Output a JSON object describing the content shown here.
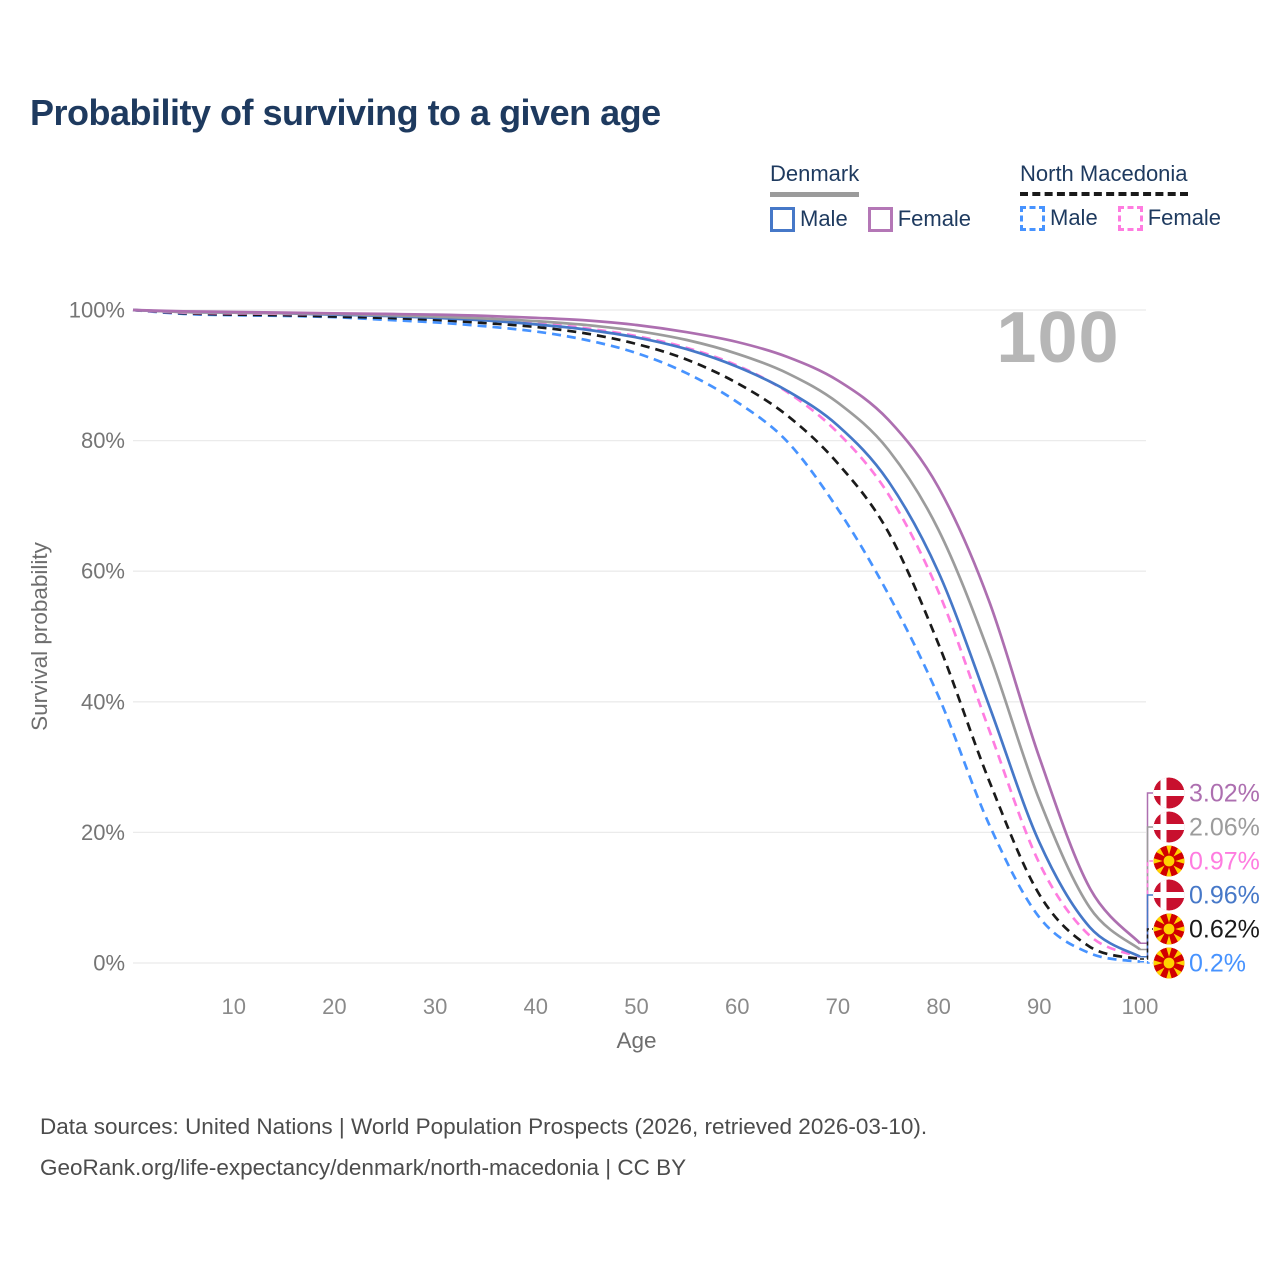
{
  "page": {
    "title": "Probability of surviving to a given age",
    "watermark_age_counter": "100"
  },
  "legend": {
    "groups": [
      {
        "label": "Denmark",
        "line_style": "solid",
        "underline_color": "#9b9b9b",
        "items": [
          {
            "label": "Male",
            "color": "#4678c8"
          },
          {
            "label": "Female",
            "color": "#b477b6"
          }
        ]
      },
      {
        "label": "North Macedonia",
        "line_style": "dashed",
        "underline_color": "#1a1a1a",
        "items": [
          {
            "label": "Male",
            "color": "#4793ff"
          },
          {
            "label": "Female",
            "color": "#ff7ce0"
          }
        ]
      }
    ]
  },
  "chart_data": {
    "type": "line",
    "title": "Probability of surviving to a given age",
    "xlabel": "Age",
    "ylabel": "Survival probability",
    "xlim": [
      0,
      100
    ],
    "ylim": [
      0,
      100
    ],
    "grid": "horizontal",
    "x_ticks": [
      10,
      20,
      30,
      40,
      50,
      60,
      70,
      80,
      90,
      100
    ],
    "y_ticks": [
      {
        "label": "0%",
        "value": 0
      },
      {
        "label": "20%",
        "value": 20
      },
      {
        "label": "40%",
        "value": 40
      },
      {
        "label": "60%",
        "value": 60
      },
      {
        "label": "80%",
        "value": 80
      },
      {
        "label": "100%",
        "value": 100
      }
    ],
    "ages": [
      0,
      5,
      10,
      15,
      20,
      25,
      30,
      35,
      40,
      45,
      50,
      55,
      60,
      65,
      70,
      75,
      80,
      85,
      90,
      95,
      100
    ],
    "series": [
      {
        "name": "Denmark Female",
        "country": "Denmark",
        "sex": "Female",
        "color": "#ad6fb0",
        "dash": "solid",
        "flag": "denmark",
        "end_label": "3.02%",
        "values": [
          100,
          99.8,
          99.7,
          99.6,
          99.5,
          99.4,
          99.3,
          99.1,
          98.8,
          98.4,
          97.7,
          96.6,
          95.1,
          92.8,
          89.2,
          83.2,
          72.8,
          55.5,
          31.5,
          11.5,
          3.02
        ]
      },
      {
        "name": "Denmark Both Sexes",
        "country": "Denmark",
        "sex": "Both",
        "color": "#9c9c9c",
        "dash": "solid",
        "flag": "denmark",
        "end_label": "2.06%",
        "values": [
          100,
          99.7,
          99.6,
          99.5,
          99.4,
          99.2,
          99.0,
          98.7,
          98.3,
          97.7,
          96.8,
          95.4,
          93.3,
          90.3,
          85.8,
          78.6,
          66.3,
          47.5,
          25.0,
          8.5,
          2.06
        ]
      },
      {
        "name": "North Macedonia Female",
        "country": "North Macedonia",
        "sex": "Female",
        "color": "#ff7ce0",
        "dash": "dashed",
        "flag": "north-macedonia",
        "end_label": "0.97%",
        "values": [
          100,
          99.6,
          99.5,
          99.4,
          99.3,
          99.1,
          98.9,
          98.5,
          98.0,
          97.2,
          96.0,
          94.2,
          91.5,
          87.4,
          81.2,
          71.8,
          56.8,
          35.8,
          15.3,
          4.2,
          0.97
        ]
      },
      {
        "name": "Denmark Male",
        "country": "Denmark",
        "sex": "Male",
        "color": "#4678c8",
        "dash": "solid",
        "flag": "denmark",
        "end_label": "0.96%",
        "values": [
          100,
          99.7,
          99.6,
          99.5,
          99.3,
          99.1,
          98.8,
          98.4,
          97.8,
          97.0,
          95.8,
          94.0,
          91.3,
          87.6,
          82.3,
          73.8,
          59.8,
          39.5,
          18.5,
          5.5,
          0.96
        ]
      },
      {
        "name": "North Macedonia Both Sexes",
        "country": "North Macedonia",
        "sex": "Both",
        "color": "#1a1a1a",
        "dash": "dashed",
        "flag": "north-macedonia",
        "end_label": "0.62%",
        "values": [
          100,
          99.5,
          99.3,
          99.2,
          99.0,
          98.8,
          98.5,
          98.0,
          97.4,
          96.4,
          94.8,
          92.4,
          88.8,
          83.8,
          76.5,
          66.0,
          48.8,
          28.0,
          10.5,
          2.5,
          0.62
        ]
      },
      {
        "name": "North Macedonia Male",
        "country": "North Macedonia",
        "sex": "Male",
        "color": "#4793ff",
        "dash": "dashed",
        "flag": "north-macedonia",
        "end_label": "0.2%",
        "values": [
          100,
          99.4,
          99.2,
          99.1,
          98.9,
          98.5,
          98.1,
          97.5,
          96.7,
          95.4,
          93.4,
          90.3,
          85.9,
          79.8,
          69.5,
          56.5,
          40.8,
          21.3,
          7.0,
          1.5,
          0.2
        ]
      }
    ],
    "draw_order": [
      5,
      4,
      2,
      3,
      1,
      0
    ],
    "flag_colors": {
      "denmark": {
        "base": "#c8102e",
        "cross": "#ffffff"
      },
      "north_macedonia": {
        "base": "#d20000",
        "sun": "#ffd200"
      }
    }
  },
  "footer": {
    "line1": "Data sources: United Nations | World Population Prospects (2026, retrieved 2026-03-10).",
    "line2": "GeoRank.org/life-expectancy/denmark/north-macedonia | CC BY"
  }
}
